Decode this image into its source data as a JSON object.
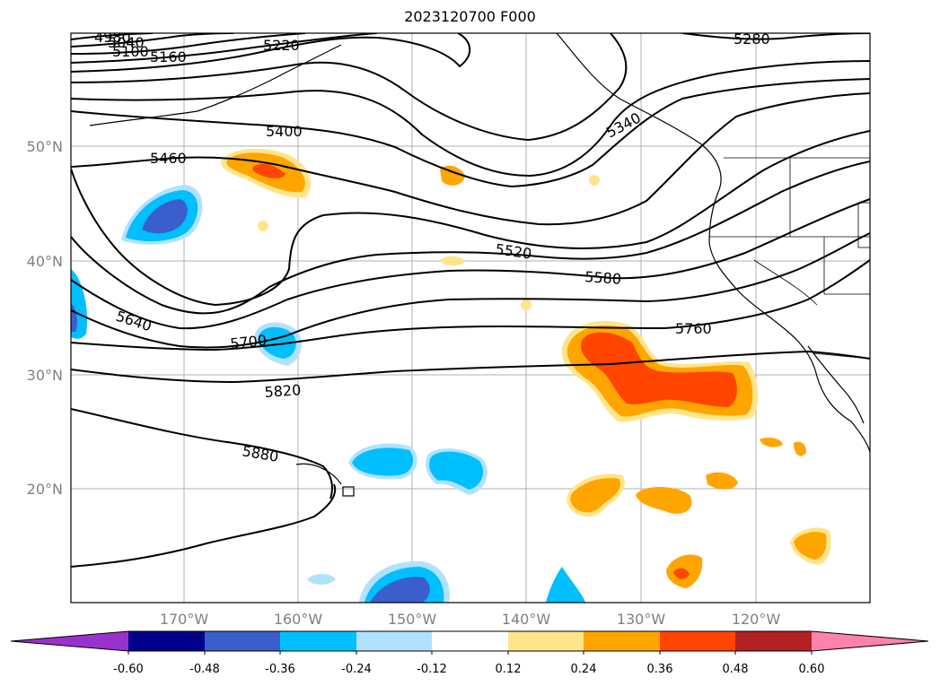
{
  "title": "2023120700 F000",
  "latitude_labels": [
    "50°N",
    "40°N",
    "30°N",
    "20°N"
  ],
  "longitude_labels": [
    "170°W",
    "160°W",
    "150°W",
    "140°W",
    "130°W",
    "120°W"
  ],
  "contour_labels": [
    "4980",
    "5040",
    "5100",
    "5160",
    "5220",
    "5280",
    "5340",
    "5400",
    "5460",
    "5520",
    "5580",
    "5640",
    "5700",
    "5760",
    "5820",
    "5880"
  ],
  "colorbar": {
    "tick_labels": [
      "-0.60",
      "-0.48",
      "-0.36",
      "-0.24",
      "-0.12",
      "0.12",
      "0.24",
      "0.36",
      "0.48",
      "0.60"
    ],
    "colors": [
      "#9932cc",
      "#00008b",
      "#3a5fcd",
      "#00bfff",
      "#b0e2ff",
      "#ffffff",
      "#ffe58a",
      "#ffa500",
      "#ff4500",
      "#b22222",
      "#ff82ab"
    ]
  }
}
